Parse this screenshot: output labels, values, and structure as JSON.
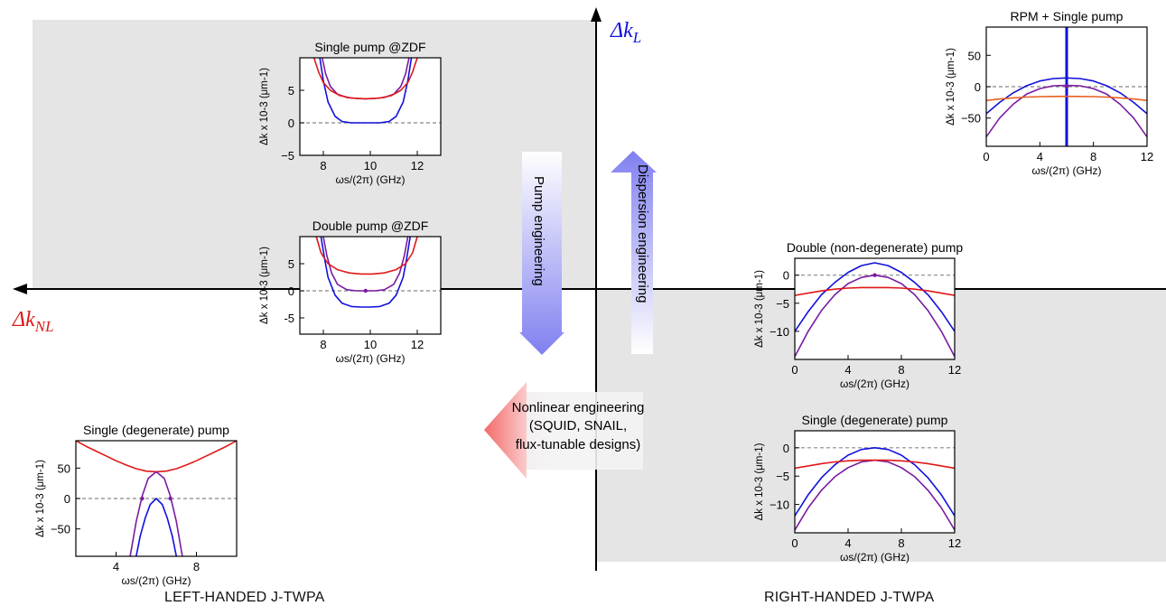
{
  "colors": {
    "blue": "#1010dd",
    "purple": "#7a1aa0",
    "red": "#e01818",
    "orange": "#e86020",
    "shade": "#e5e5e5"
  },
  "axes": {
    "vertical_label": "Δk",
    "vertical_sub": "L",
    "horizontal_label": "Δk",
    "horizontal_sub": "NL"
  },
  "arrows": {
    "pump": "Pump engineering",
    "dispersion": "Dispersion engineering",
    "nonlinear": [
      "Nonlinear engineering",
      "(SQUID, SNAIL,",
      "flux-tunable designs)"
    ]
  },
  "quadrant_labels": {
    "left": "LEFT-HANDED J-TWPA",
    "right": "RIGHT-HANDED J-TWPA"
  },
  "y_axis_label": "Δk x 10-3 (μm-1)",
  "x_axis_label": "ωs/(2π) (GHz)",
  "chart_data": [
    {
      "id": "single-pump-zdf",
      "type": "line",
      "title": "Single pump @ZDF",
      "xlim": [
        7,
        13
      ],
      "ylim": [
        -5,
        10
      ],
      "xticks": [
        8,
        10,
        12
      ],
      "yticks": [
        -5,
        0,
        5
      ],
      "ytick_labels": [
        "−5",
        "0",
        "5"
      ],
      "series": [
        {
          "color": "blue",
          "x": [
            7.85,
            8.0,
            8.2,
            8.5,
            8.8,
            9.2,
            9.6,
            10.0,
            10.4,
            10.8,
            11.1,
            11.4,
            11.6,
            11.75
          ],
          "y": [
            10,
            6.5,
            3.2,
            1.0,
            0.2,
            0.0,
            0.0,
            0.0,
            0.0,
            0.2,
            1.0,
            3.2,
            6.5,
            10
          ]
        },
        {
          "color": "purple",
          "x": [
            7.95,
            8.1,
            8.3,
            8.6,
            9.0,
            9.4,
            9.8,
            10.2,
            10.6,
            11.0,
            11.3,
            11.5,
            11.65
          ],
          "y": [
            10,
            7.5,
            5.6,
            4.4,
            3.9,
            3.75,
            3.7,
            3.75,
            3.9,
            4.4,
            5.6,
            7.5,
            10
          ]
        },
        {
          "color": "red",
          "x": [
            7.6,
            7.8,
            8.0,
            8.3,
            8.7,
            9.2,
            9.8,
            10.4,
            10.9,
            11.3,
            11.6,
            11.8,
            12.0
          ],
          "y": [
            10,
            7.8,
            6.2,
            5.0,
            4.2,
            3.8,
            3.7,
            3.8,
            4.2,
            5.0,
            6.2,
            7.8,
            10
          ]
        }
      ],
      "markers": []
    },
    {
      "id": "double-pump-zdf",
      "type": "line",
      "title": "Double pump @ZDF",
      "xlim": [
        7,
        13
      ],
      "ylim": [
        -8,
        10
      ],
      "xticks": [
        8,
        10,
        12
      ],
      "yticks": [
        -5,
        0,
        5
      ],
      "ytick_labels": [
        "-5",
        "0",
        "5"
      ],
      "series": [
        {
          "color": "blue",
          "x": [
            7.9,
            8.05,
            8.2,
            8.5,
            8.8,
            9.2,
            9.6,
            10.0,
            10.4,
            10.8,
            11.1,
            11.4,
            11.55,
            11.7
          ],
          "y": [
            10,
            6.0,
            2.5,
            -0.8,
            -2.3,
            -2.9,
            -3.0,
            -3.0,
            -2.9,
            -2.3,
            -0.8,
            2.5,
            6.0,
            10
          ]
        },
        {
          "color": "purple",
          "x": [
            8.0,
            8.15,
            8.35,
            8.6,
            9.0,
            9.4,
            9.8,
            10.2,
            10.6,
            11.0,
            11.25,
            11.45,
            11.6
          ],
          "y": [
            10,
            6.5,
            3.3,
            1.2,
            0.2,
            0.0,
            0.0,
            0.0,
            0.2,
            1.2,
            3.3,
            6.5,
            10
          ]
        },
        {
          "color": "red",
          "x": [
            7.7,
            7.9,
            8.2,
            8.6,
            9.1,
            9.6,
            10.1,
            10.6,
            11.1,
            11.5,
            11.8,
            12.0
          ],
          "y": [
            10,
            7.0,
            5.0,
            3.9,
            3.3,
            3.1,
            3.1,
            3.3,
            3.9,
            5.0,
            7.0,
            10
          ]
        }
      ],
      "markers": [
        {
          "x": 9.8,
          "y": 0
        }
      ]
    },
    {
      "id": "single-degenerate-left",
      "type": "line",
      "title": "Single (degenerate) pump",
      "xlim": [
        2,
        10
      ],
      "ylim": [
        -95,
        95
      ],
      "xticks": [
        4,
        8
      ],
      "yticks": [
        -50,
        0,
        50
      ],
      "ytick_labels": [
        "−50",
        "0",
        "50"
      ],
      "series": [
        {
          "color": "red",
          "x": [
            2.0,
            2.5,
            3.0,
            3.5,
            4.0,
            4.5,
            5.0,
            5.5,
            6.0,
            6.5,
            7.0,
            7.5,
            8.0,
            8.5,
            9.0,
            9.5,
            10.0
          ],
          "y": [
            95,
            86,
            78,
            70,
            62,
            55,
            49,
            45,
            44,
            45,
            49,
            55,
            62,
            70,
            78,
            86,
            95
          ]
        },
        {
          "color": "purple",
          "x": [
            4.7,
            5.0,
            5.3,
            5.6,
            6.0,
            6.4,
            6.7,
            7.0,
            7.3
          ],
          "y": [
            -95,
            -38,
            4,
            33,
            44,
            33,
            4,
            -38,
            -95
          ]
        },
        {
          "color": "blue",
          "x": [
            5.0,
            5.2,
            5.45,
            5.7,
            6.0,
            6.3,
            6.55,
            6.8,
            7.0
          ],
          "y": [
            -95,
            -62,
            -32,
            -10,
            0,
            -10,
            -32,
            -62,
            -95
          ]
        }
      ],
      "markers": [
        {
          "x": 5.3,
          "y": 0
        },
        {
          "x": 6.7,
          "y": 0
        }
      ]
    },
    {
      "id": "rpm-single-pump",
      "type": "line",
      "title": "RPM + Single pump",
      "xlim": [
        0,
        12
      ],
      "ylim": [
        -95,
        95
      ],
      "xticks": [
        0,
        4,
        8,
        12
      ],
      "yticks": [
        -50,
        0,
        50
      ],
      "ytick_labels": [
        "−50",
        "0",
        "50"
      ],
      "series": [
        {
          "color": "blue",
          "x": [
            0,
            1,
            2,
            3,
            4,
            5,
            6,
            7,
            8,
            9,
            10,
            11,
            12
          ],
          "y": [
            -43,
            -25,
            -10,
            1.5,
            9,
            13,
            14,
            13,
            9,
            1.5,
            -10,
            -25,
            -43
          ]
        },
        {
          "color": "purple",
          "x": [
            0,
            1,
            2,
            3,
            4,
            5,
            6,
            7,
            8,
            9,
            10,
            11,
            12
          ],
          "y": [
            -80,
            -50,
            -28,
            -12,
            -3,
            1.5,
            2,
            1.5,
            -3,
            -12,
            -28,
            -50,
            -80
          ]
        },
        {
          "color": "orange",
          "x": [
            0,
            1,
            2,
            3,
            4,
            5,
            6,
            7,
            8,
            9,
            10,
            11,
            12
          ],
          "y": [
            -22,
            -19.6,
            -17.8,
            -16.6,
            -15.9,
            -15.5,
            -15.4,
            -15.5,
            -15.9,
            -16.6,
            -17.8,
            -19.6,
            -22
          ]
        }
      ],
      "vlines": [
        {
          "x": 6,
          "color": "blue"
        }
      ],
      "markers": [
        {
          "x": 6,
          "y": 0
        }
      ]
    },
    {
      "id": "double-nondegenerate-pump",
      "type": "line",
      "title": "Double (non-degenerate) pump",
      "xlim": [
        0,
        12
      ],
      "ylim": [
        -15,
        3
      ],
      "xticks": [
        0,
        4,
        8,
        12
      ],
      "yticks": [
        -10,
        -5,
        0
      ],
      "ytick_labels": [
        "−10",
        "−5",
        "0"
      ],
      "series": [
        {
          "color": "blue",
          "x": [
            0,
            1,
            2,
            3,
            4,
            5,
            6,
            7,
            8,
            9,
            10,
            11,
            12
          ],
          "y": [
            -10,
            -6.5,
            -3.5,
            -1.3,
            0.5,
            1.7,
            2.2,
            1.7,
            0.5,
            -1.3,
            -3.5,
            -6.5,
            -10
          ]
        },
        {
          "color": "purple",
          "x": [
            0,
            1,
            2,
            3,
            4,
            5,
            6,
            7,
            8,
            9,
            10,
            11,
            12
          ],
          "y": [
            -14.5,
            -10,
            -6.3,
            -3.5,
            -1.5,
            -0.4,
            0,
            -0.4,
            -1.5,
            -3.5,
            -6.3,
            -10,
            -14.5
          ]
        },
        {
          "color": "red",
          "x": [
            0,
            1,
            2,
            3,
            4,
            5,
            6,
            7,
            8,
            9,
            10,
            11,
            12
          ],
          "y": [
            -3.6,
            -3.2,
            -2.8,
            -2.5,
            -2.3,
            -2.2,
            -2.2,
            -2.2,
            -2.3,
            -2.5,
            -2.8,
            -3.2,
            -3.6
          ]
        }
      ],
      "markers": [
        {
          "x": 6,
          "y": 0
        }
      ]
    },
    {
      "id": "single-degenerate-right",
      "type": "line",
      "title": "Single (degenerate) pump",
      "xlim": [
        0,
        12
      ],
      "ylim": [
        -15,
        3
      ],
      "xticks": [
        0,
        4,
        8,
        12
      ],
      "yticks": [
        -10,
        -5,
        0
      ],
      "ytick_labels": [
        "−10",
        "−5",
        "0"
      ],
      "series": [
        {
          "color": "blue",
          "x": [
            0,
            1,
            2,
            3,
            4,
            5,
            6,
            7,
            8,
            9,
            10,
            11,
            12
          ],
          "y": [
            -12,
            -8.3,
            -5.3,
            -3.0,
            -1.3,
            -0.3,
            0,
            -0.3,
            -1.3,
            -3.0,
            -5.3,
            -8.3,
            -12
          ]
        },
        {
          "color": "purple",
          "x": [
            0,
            1,
            2,
            3,
            4,
            5,
            6,
            7,
            8,
            9,
            10,
            11,
            12
          ],
          "y": [
            -14.5,
            -10.6,
            -7.5,
            -5.1,
            -3.5,
            -2.5,
            -2.2,
            -2.5,
            -3.5,
            -5.1,
            -7.5,
            -10.6,
            -14.5
          ]
        },
        {
          "color": "red",
          "x": [
            0,
            1,
            2,
            3,
            4,
            5,
            6,
            7,
            8,
            9,
            10,
            11,
            12
          ],
          "y": [
            -3.6,
            -3.2,
            -2.8,
            -2.5,
            -2.3,
            -2.2,
            -2.2,
            -2.2,
            -2.3,
            -2.5,
            -2.8,
            -3.2,
            -3.6
          ]
        }
      ],
      "markers": []
    }
  ]
}
